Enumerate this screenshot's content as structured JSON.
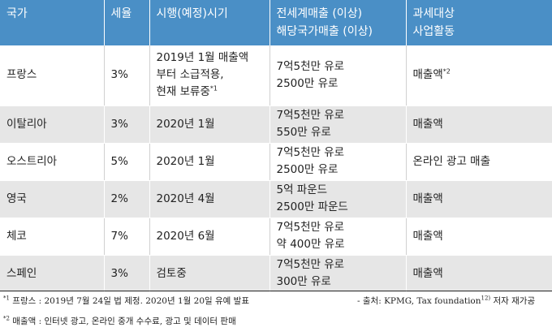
{
  "headers": {
    "country": "국가",
    "rate": "세율",
    "effective": "시행(예정)시기",
    "revenue_line1": "전세계매출 (이상)",
    "revenue_line2": "해당국가매출 (이상)",
    "target_line1": "과세대상",
    "target_line2": "사업활동"
  },
  "rows": [
    {
      "country": "프랑스",
      "rate": "3%",
      "effective_lines": [
        "2019년 1월 매출액",
        "부터 소급적용,",
        "현재 보류중"
      ],
      "effective_sup": "*1",
      "revenue_lines": [
        "7억5천만 유로",
        "2500만 유로"
      ],
      "target": "매출액",
      "target_sup": "*2"
    },
    {
      "country": "이탈리아",
      "rate": "3%",
      "effective_lines": [
        "2020년 1월"
      ],
      "revenue_lines": [
        "7억5천만 유로",
        "550만 유로"
      ],
      "target": "매출액"
    },
    {
      "country": "오스트리아",
      "rate": "5%",
      "effective_lines": [
        "2020년 1월"
      ],
      "revenue_lines": [
        "7억5천만 유로",
        "2500만 유로"
      ],
      "target": "온라인 광고 매출"
    },
    {
      "country": "영국",
      "rate": "2%",
      "effective_lines": [
        "2020년 4월"
      ],
      "revenue_lines": [
        "5억 파운드",
        "2500만 파운드"
      ],
      "target": "매출액"
    },
    {
      "country": "체코",
      "rate": "7%",
      "effective_lines": [
        "2020년 6월"
      ],
      "revenue_lines": [
        "7억5천만 유로",
        "약 400만 유로"
      ],
      "target": "매출액"
    },
    {
      "country": "스페인",
      "rate": "3%",
      "effective_lines": [
        "검토중"
      ],
      "revenue_lines": [
        "7억5천만 유로",
        "300만 유로"
      ],
      "target": "매출액"
    }
  ],
  "footnotes": {
    "note1_mark": "*1",
    "note1_text": " 프랑스 : 2019년 7월 24일 법 제정. 2020년 1월 20일 유예 발표",
    "source_text": "- 출처: KPMG, Tax foundation",
    "source_sup": "12)",
    "source_suffix": " 저자 재가공",
    "note2_mark": "*2",
    "note2_text": " 매출액 : 인터넷 광고, 온라인 중개 수수료, 광고 및 데이터 판매"
  }
}
